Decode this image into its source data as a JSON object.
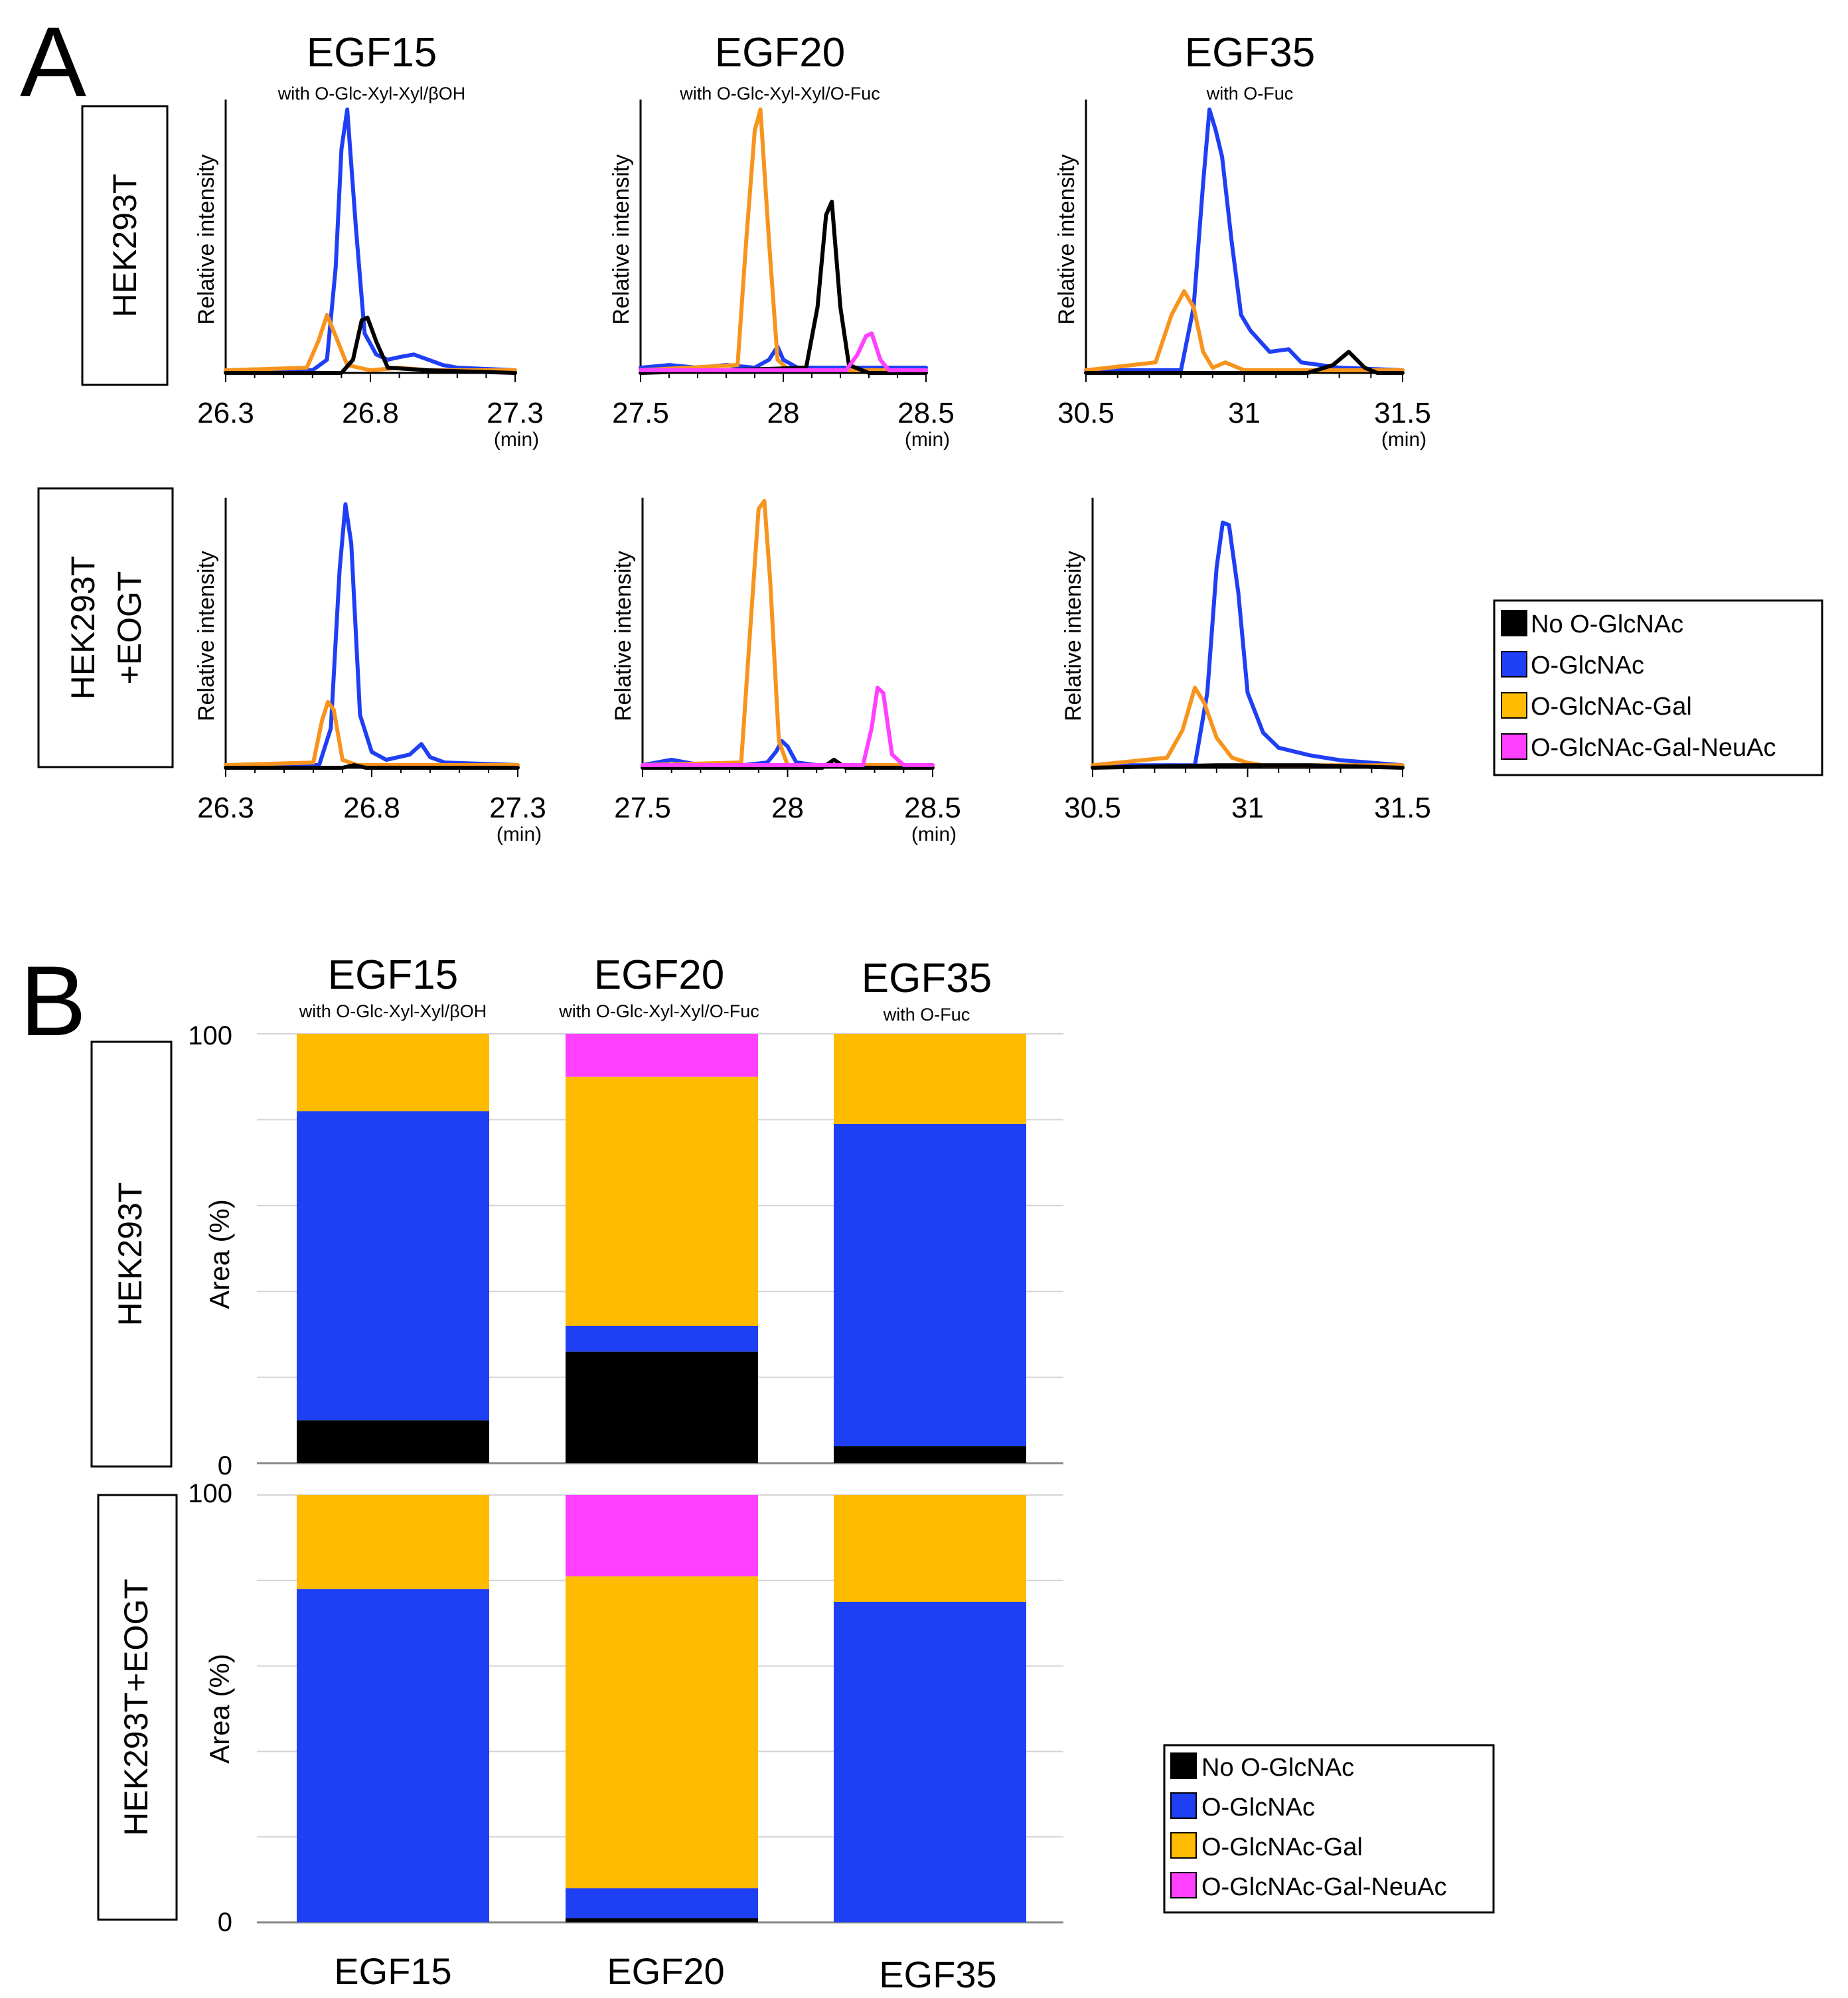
{
  "panels": {
    "a": "A",
    "b": "B"
  },
  "legend": {
    "entries": [
      {
        "label": "No O-GlcNAc",
        "color": "#000000"
      },
      {
        "label": "O-GlcNAc",
        "color": "#1f3ff5"
      },
      {
        "label": "O-GlcNAc-Gal",
        "color": "#ffbb00"
      },
      {
        "label": "O-GlcNAc-Gal-NeuAc",
        "color": "#ff40ff"
      }
    ],
    "line_colors": {
      "No O-GlcNAc": "#000000",
      "O-GlcNAc": "#1f3ff5",
      "O-GlcNAc-Gal": "#f7941d",
      "O-GlcNAc-Gal-NeuAc": "#ff40ff"
    }
  },
  "row_labels": {
    "r1": "HEK293T",
    "r2a": "HEK293T",
    "r2b": "+EOGT",
    "b2": "HEK293T+EOGT"
  },
  "columns": [
    {
      "title": "EGF15",
      "subtitle": "with O-Glc-Xyl-Xyl/βOH"
    },
    {
      "title": "EGF20",
      "subtitle": "with O-Glc-Xyl-Xyl/O-Fuc"
    },
    {
      "title": "EGF35",
      "subtitle": "with O-Fuc"
    }
  ],
  "chart_data": [
    {
      "type": "line",
      "panel": "A",
      "ylabel": "Relative intensity",
      "xunit": "(min)",
      "plots": [
        {
          "id": "A-r1-c1",
          "row": "HEK293T",
          "column": "EGF15",
          "xlim": [
            26.3,
            27.3
          ],
          "xticks": [
            "26.3",
            "26.8",
            "27.3"
          ],
          "show_unit": true,
          "series": [
            {
              "name": "O-GlcNAc",
              "x": [
                26.3,
                26.6,
                26.65,
                26.68,
                26.7,
                26.72,
                26.75,
                26.78,
                26.82,
                26.86,
                26.9,
                26.95,
                27.0,
                27.05,
                27.1,
                27.3
              ],
              "y": [
                0.01,
                0.01,
                0.05,
                0.4,
                0.85,
                1.0,
                0.55,
                0.15,
                0.07,
                0.05,
                0.06,
                0.07,
                0.05,
                0.03,
                0.02,
                0.01
              ]
            },
            {
              "name": "O-GlcNAc-Gal",
              "x": [
                26.3,
                26.58,
                26.62,
                26.65,
                26.68,
                26.72,
                26.8,
                26.9,
                27.0,
                27.3
              ],
              "y": [
                0.01,
                0.02,
                0.12,
                0.22,
                0.14,
                0.03,
                0.01,
                0.02,
                0.01,
                0.01
              ]
            },
            {
              "name": "No O-GlcNAc",
              "x": [
                26.3,
                26.7,
                26.74,
                26.77,
                26.79,
                26.82,
                26.86,
                27.0,
                27.3
              ],
              "y": [
                0.0,
                0.0,
                0.05,
                0.2,
                0.21,
                0.12,
                0.02,
                0.01,
                0.0
              ]
            }
          ]
        },
        {
          "id": "A-r1-c2",
          "row": "HEK293T",
          "column": "EGF20",
          "xlim": [
            27.5,
            28.5
          ],
          "xticks": [
            "27.5",
            "28",
            "28.5"
          ],
          "show_unit": true,
          "series": [
            {
              "name": "O-GlcNAc",
              "x": [
                27.5,
                27.6,
                27.7,
                27.8,
                27.9,
                27.95,
                27.98,
                28.0,
                28.05,
                28.1,
                28.3,
                28.5
              ],
              "y": [
                0.02,
                0.03,
                0.02,
                0.03,
                0.02,
                0.05,
                0.1,
                0.05,
                0.02,
                0.02,
                0.02,
                0.02
              ]
            },
            {
              "name": "O-GlcNAc-Gal",
              "x": [
                27.5,
                27.84,
                27.87,
                27.9,
                27.92,
                27.95,
                27.98,
                28.02,
                28.5
              ],
              "y": [
                0.01,
                0.03,
                0.5,
                0.92,
                1.0,
                0.5,
                0.05,
                0.01,
                0.01
              ]
            },
            {
              "name": "No O-GlcNAc",
              "x": [
                27.5,
                28.08,
                28.12,
                28.15,
                28.17,
                28.2,
                28.23,
                28.3,
                28.5
              ],
              "y": [
                0.0,
                0.02,
                0.25,
                0.6,
                0.65,
                0.25,
                0.03,
                0.0,
                0.0
              ]
            },
            {
              "name": "O-GlcNAc-Gal-NeuAc",
              "x": [
                27.5,
                28.22,
                28.26,
                28.29,
                28.31,
                28.34,
                28.37,
                28.5
              ],
              "y": [
                0.01,
                0.01,
                0.07,
                0.14,
                0.15,
                0.05,
                0.01,
                0.01
              ]
            }
          ]
        },
        {
          "id": "A-r1-c3",
          "row": "HEK293T",
          "column": "EGF35",
          "xlim": [
            30.5,
            31.5
          ],
          "xticks": [
            "30.5",
            "31",
            "31.5"
          ],
          "show_unit": true,
          "series": [
            {
              "name": "O-GlcNAc",
              "x": [
                30.5,
                30.8,
                30.84,
                30.87,
                30.89,
                30.91,
                30.93,
                30.96,
                30.99,
                31.02,
                31.08,
                31.14,
                31.18,
                31.3,
                31.5
              ],
              "y": [
                0.01,
                0.01,
                0.25,
                0.72,
                1.0,
                0.92,
                0.82,
                0.5,
                0.22,
                0.16,
                0.08,
                0.09,
                0.04,
                0.02,
                0.01
              ]
            },
            {
              "name": "O-GlcNAc-Gal",
              "x": [
                30.5,
                30.72,
                30.77,
                30.81,
                30.84,
                30.87,
                30.9,
                30.94,
                31.0,
                31.5
              ],
              "y": [
                0.01,
                0.04,
                0.22,
                0.31,
                0.25,
                0.08,
                0.02,
                0.04,
                0.01,
                0.01
              ]
            },
            {
              "name": "No O-GlcNAc",
              "x": [
                30.5,
                31.2,
                31.28,
                31.33,
                31.38,
                31.42,
                31.5
              ],
              "y": [
                0.0,
                0.0,
                0.03,
                0.08,
                0.02,
                0.0,
                0.0
              ]
            }
          ]
        },
        {
          "id": "A-r2-c1",
          "row": "HEK293T+EOGT",
          "column": "EGF15",
          "xlim": [
            26.3,
            27.3
          ],
          "xticks": [
            "26.3",
            "26.8",
            "27.3"
          ],
          "show_unit": true,
          "series": [
            {
              "name": "O-GlcNAc",
              "x": [
                26.3,
                26.62,
                26.66,
                26.69,
                26.71,
                26.73,
                26.76,
                26.8,
                26.85,
                26.93,
                26.97,
                27.0,
                27.05,
                27.3
              ],
              "y": [
                0.01,
                0.01,
                0.15,
                0.75,
                1.0,
                0.85,
                0.2,
                0.06,
                0.03,
                0.05,
                0.09,
                0.04,
                0.02,
                0.01
              ]
            },
            {
              "name": "O-GlcNAc-Gal",
              "x": [
                26.3,
                26.6,
                26.63,
                26.65,
                26.67,
                26.7,
                26.75,
                27.3
              ],
              "y": [
                0.01,
                0.02,
                0.18,
                0.25,
                0.22,
                0.03,
                0.01,
                0.01
              ]
            },
            {
              "name": "No O-GlcNAc",
              "x": [
                26.3,
                26.7,
                26.74,
                26.78,
                27.3
              ],
              "y": [
                0.0,
                0.0,
                0.01,
                0.0,
                0.0
              ]
            }
          ]
        },
        {
          "id": "A-r2-c2",
          "row": "HEK293T+EOGT",
          "column": "EGF20",
          "xlim": [
            27.5,
            28.5
          ],
          "xticks": [
            "27.5",
            "28",
            "28.5"
          ],
          "show_unit": true,
          "series": [
            {
              "name": "O-GlcNAc",
              "x": [
                27.5,
                27.6,
                27.7,
                27.85,
                27.93,
                27.96,
                27.98,
                28.0,
                28.03,
                28.1,
                28.5
              ],
              "y": [
                0.01,
                0.03,
                0.01,
                0.01,
                0.02,
                0.06,
                0.1,
                0.08,
                0.02,
                0.01,
                0.01
              ]
            },
            {
              "name": "O-GlcNAc-Gal",
              "x": [
                27.5,
                27.84,
                27.87,
                27.9,
                27.92,
                27.94,
                27.97,
                28.0,
                28.5
              ],
              "y": [
                0.01,
                0.02,
                0.5,
                0.97,
                1.0,
                0.7,
                0.1,
                0.01,
                0.01
              ]
            },
            {
              "name": "No O-GlcNAc",
              "x": [
                27.5,
                28.12,
                28.16,
                28.2,
                28.5
              ],
              "y": [
                0.0,
                0.0,
                0.03,
                0.0,
                0.0
              ]
            },
            {
              "name": "O-GlcNAc-Gal-NeuAc",
              "x": [
                27.5,
                28.26,
                28.29,
                28.31,
                28.33,
                28.36,
                28.4,
                28.5
              ],
              "y": [
                0.01,
                0.01,
                0.15,
                0.3,
                0.28,
                0.05,
                0.01,
                0.01
              ]
            }
          ]
        },
        {
          "id": "A-r2-c3",
          "row": "HEK293T+EOGT",
          "column": "EGF35",
          "xlim": [
            30.5,
            31.5
          ],
          "xticks": [
            "30.5",
            "31",
            "31.5"
          ],
          "show_unit": false,
          "series": [
            {
              "name": "O-GlcNAc",
              "x": [
                30.5,
                30.83,
                30.87,
                30.9,
                30.92,
                30.94,
                30.97,
                31.0,
                31.05,
                31.1,
                31.2,
                31.3,
                31.5
              ],
              "y": [
                0.01,
                0.01,
                0.3,
                0.8,
                0.98,
                0.97,
                0.7,
                0.3,
                0.14,
                0.08,
                0.05,
                0.03,
                0.01
              ]
            },
            {
              "name": "O-GlcNAc-Gal",
              "x": [
                30.5,
                30.74,
                30.79,
                30.83,
                30.86,
                30.9,
                30.95,
                31.0,
                31.05,
                31.5
              ],
              "y": [
                0.01,
                0.04,
                0.15,
                0.32,
                0.26,
                0.12,
                0.04,
                0.02,
                0.01,
                0.01
              ]
            },
            {
              "name": "No O-GlcNAc",
              "x": [
                30.5,
                30.9,
                31.0,
                31.2,
                31.5
              ],
              "y": [
                0.0,
                0.01,
                0.01,
                0.01,
                0.0
              ]
            }
          ]
        }
      ]
    },
    {
      "type": "bar",
      "panel": "B",
      "stacked": true,
      "ylabel": "Area (%)",
      "ylim": [
        0,
        100
      ],
      "yticks": [
        "0",
        "100"
      ],
      "categories": [
        "EGF15",
        "EGF20",
        "EGF35"
      ],
      "rows": [
        {
          "row": "HEK293T",
          "series": [
            {
              "name": "No O-GlcNAc",
              "values": [
                10,
                26,
                4
              ]
            },
            {
              "name": "O-GlcNAc",
              "values": [
                72,
                6,
                75
              ]
            },
            {
              "name": "O-GlcNAc-Gal",
              "values": [
                18,
                58,
                21
              ]
            },
            {
              "name": "O-GlcNAc-Gal-NeuAc",
              "values": [
                0,
                10,
                0
              ]
            }
          ]
        },
        {
          "row": "HEK293T+EOGT",
          "series": [
            {
              "name": "No O-GlcNAc",
              "values": [
                0,
                1,
                0
              ]
            },
            {
              "name": "O-GlcNAc",
              "values": [
                78,
                7,
                75
              ]
            },
            {
              "name": "O-GlcNAc-Gal",
              "values": [
                22,
                73,
                25
              ]
            },
            {
              "name": "O-GlcNAc-Gal-NeuAc",
              "values": [
                0,
                19,
                0
              ]
            }
          ]
        }
      ]
    }
  ]
}
